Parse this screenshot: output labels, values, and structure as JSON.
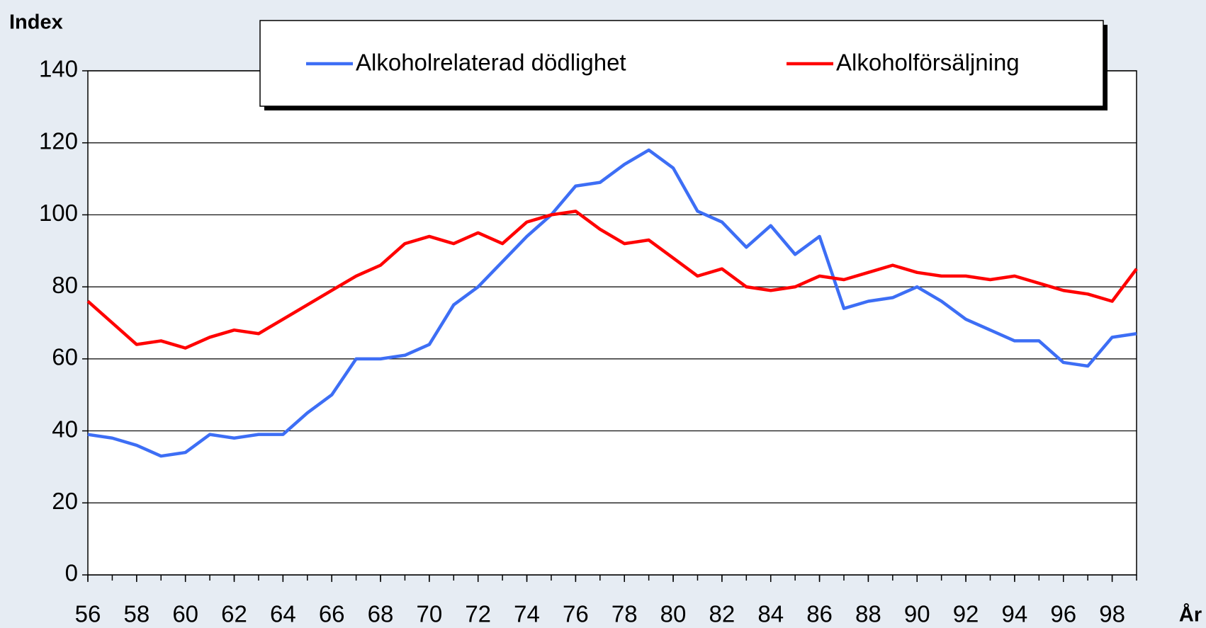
{
  "chart_data": {
    "type": "line",
    "y_label": "Index",
    "x_label": "År",
    "x": [
      56,
      57,
      58,
      59,
      60,
      61,
      62,
      63,
      64,
      65,
      66,
      67,
      68,
      69,
      70,
      71,
      72,
      73,
      74,
      75,
      76,
      77,
      78,
      79,
      80,
      81,
      82,
      83,
      84,
      85,
      86,
      87,
      88,
      89,
      90,
      91,
      92,
      93,
      94,
      95,
      96,
      97,
      98,
      99
    ],
    "series": [
      {
        "name": "Alkoholrelaterad dödlighet",
        "color": "#3d6ef5",
        "values": [
          39,
          38,
          36,
          33,
          34,
          39,
          38,
          39,
          39,
          45,
          50,
          60,
          60,
          61,
          64,
          75,
          80,
          87,
          94,
          100,
          108,
          109,
          114,
          118,
          113,
          101,
          98,
          91,
          97,
          89,
          94,
          74,
          76,
          77,
          80,
          76,
          71,
          68,
          65,
          65,
          59,
          58,
          66,
          67
        ]
      },
      {
        "name": "Alkoholförsäljning",
        "color": "#ff0000",
        "values": [
          76,
          70,
          64,
          65,
          63,
          66,
          68,
          67,
          71,
          75,
          79,
          83,
          86,
          92,
          94,
          92,
          95,
          92,
          98,
          100,
          101,
          96,
          92,
          93,
          88,
          83,
          85,
          80,
          79,
          80,
          83,
          82,
          84,
          86,
          84,
          83,
          83,
          82,
          83,
          81,
          79,
          78,
          76,
          85
        ]
      }
    ],
    "xlim": [
      56,
      99
    ],
    "xticks": [
      56,
      58,
      60,
      62,
      64,
      66,
      68,
      70,
      72,
      74,
      76,
      78,
      80,
      82,
      84,
      86,
      88,
      90,
      92,
      94,
      96,
      98
    ],
    "ylim": [
      0,
      140
    ],
    "yticks": [
      0,
      20,
      40,
      60,
      80,
      100,
      120,
      140
    ],
    "grid": true,
    "legend": "top"
  }
}
